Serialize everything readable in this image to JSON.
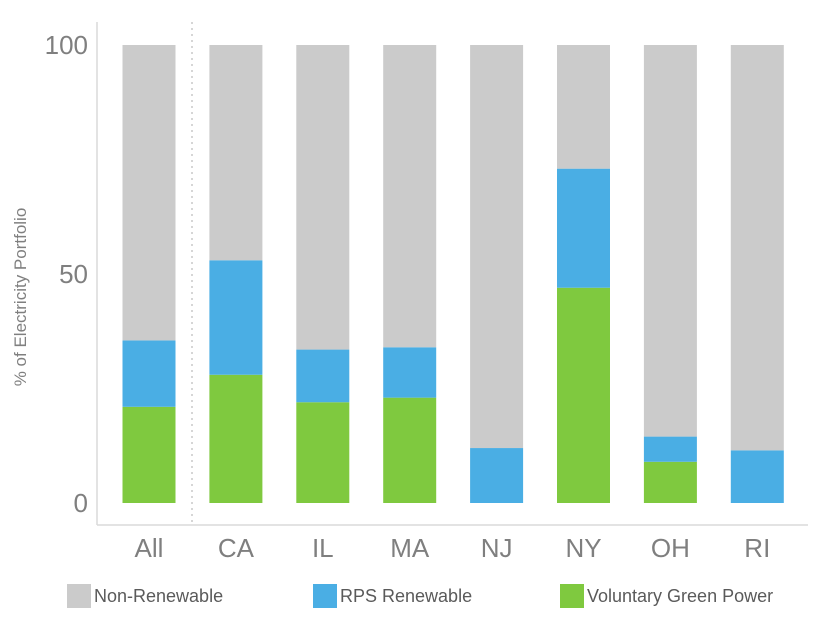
{
  "chart_data": {
    "type": "bar",
    "stacked": true,
    "categories": [
      "All",
      "CA",
      "IL",
      "MA",
      "NJ",
      "NY",
      "OH",
      "RI"
    ],
    "series": [
      {
        "name": "Voluntary Green Power",
        "color": "#7fc93f",
        "values": [
          21,
          28,
          22,
          23,
          0,
          47,
          9,
          0
        ]
      },
      {
        "name": "RPS Renewable",
        "color": "#4aaee4",
        "values": [
          14.5,
          25,
          11.5,
          11,
          12,
          26,
          5.5,
          11.5
        ]
      },
      {
        "name": "Non-Renewable",
        "color": "#cbcbcb",
        "values": [
          64.5,
          47,
          66.5,
          66,
          88,
          27,
          85.5,
          88.5
        ]
      }
    ],
    "legend_order": [
      "Non-Renewable",
      "RPS Renewable",
      "Voluntary Green Power"
    ],
    "ylabel": "% of Electricity Portfolio",
    "xlabel": "",
    "title": "",
    "ylim": [
      0,
      100
    ],
    "yticks": [
      0,
      50,
      100
    ],
    "grid": false,
    "legend_position": "bottom"
  }
}
